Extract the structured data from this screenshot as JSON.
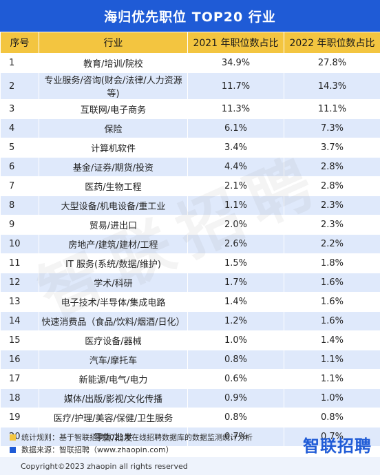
{
  "title": "海归优先职位 TOP20 行业",
  "headers": [
    "序号",
    "行业",
    "2021 年职位数占比",
    "2022 年职位数占比"
  ],
  "rows": [
    {
      "rank": "1",
      "industry": "教育/培训/院校",
      "y2021": "34.9%",
      "y2022": "27.8%"
    },
    {
      "rank": "2",
      "industry": "专业服务/咨询(财会/法律/人力资源等)",
      "y2021": "11.7%",
      "y2022": "14.3%"
    },
    {
      "rank": "3",
      "industry": "互联网/电子商务",
      "y2021": "11.3%",
      "y2022": "11.1%"
    },
    {
      "rank": "4",
      "industry": "保险",
      "y2021": "6.1%",
      "y2022": "7.3%"
    },
    {
      "rank": "5",
      "industry": "计算机软件",
      "y2021": "3.4%",
      "y2022": "3.7%"
    },
    {
      "rank": "6",
      "industry": "基金/证券/期货/投资",
      "y2021": "4.4%",
      "y2022": "2.8%"
    },
    {
      "rank": "7",
      "industry": "医药/生物工程",
      "y2021": "2.1%",
      "y2022": "2.8%"
    },
    {
      "rank": "8",
      "industry": "大型设备/机电设备/重工业",
      "y2021": "1.1%",
      "y2022": "2.3%"
    },
    {
      "rank": "9",
      "industry": "贸易/进出口",
      "y2021": "2.0%",
      "y2022": "2.3%"
    },
    {
      "rank": "10",
      "industry": "房地产/建筑/建材/工程",
      "y2021": "2.6%",
      "y2022": "2.2%"
    },
    {
      "rank": "11",
      "industry": "IT 服务(系统/数据/维护)",
      "y2021": "1.5%",
      "y2022": "1.8%"
    },
    {
      "rank": "12",
      "industry": "学术/科研",
      "y2021": "1.7%",
      "y2022": "1.6%"
    },
    {
      "rank": "13",
      "industry": "电子技术/半导体/集成电路",
      "y2021": "1.4%",
      "y2022": "1.6%"
    },
    {
      "rank": "14",
      "industry": "快速消费品（食品/饮料/烟酒/日化）",
      "y2021": "1.2%",
      "y2022": "1.6%"
    },
    {
      "rank": "15",
      "industry": "医疗设备/器械",
      "y2021": "1.0%",
      "y2022": "1.4%"
    },
    {
      "rank": "16",
      "industry": "汽车/摩托车",
      "y2021": "0.8%",
      "y2022": "1.1%"
    },
    {
      "rank": "17",
      "industry": "新能源/电气/电力",
      "y2021": "0.6%",
      "y2022": "1.1%"
    },
    {
      "rank": "18",
      "industry": "媒体/出版/影视/文化传播",
      "y2021": "0.9%",
      "y2022": "1.0%"
    },
    {
      "rank": "19",
      "industry": "医疗/护理/美容/保健/卫生服务",
      "y2021": "0.8%",
      "y2022": "0.8%"
    },
    {
      "rank": "20",
      "industry": "零售/批发",
      "y2021": "0.7%",
      "y2022": "0.7%"
    }
  ],
  "watermark": "智联招聘",
  "notes": [
    {
      "text": "统计规则：基于智联招聘2023年在线招聘数据库的数据监测统计分析",
      "color": "#f3c540"
    },
    {
      "text": "数据来源：智联招聘（www.zhaopin.com）",
      "color": "#1f5bd6"
    }
  ],
  "logo": "智联招聘",
  "footer": "Copyright©2023 zhaopin all rights reserved",
  "colors": {
    "header_blue": "#1f5bd6",
    "header_yellow": "#f3c540",
    "row_alt": "#dfe9fb"
  }
}
